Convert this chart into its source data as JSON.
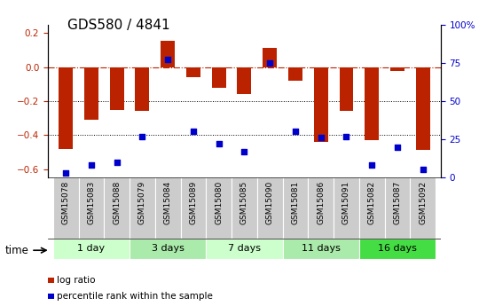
{
  "title": "GDS580 / 4841",
  "samples": [
    "GSM15078",
    "GSM15083",
    "GSM15088",
    "GSM15079",
    "GSM15084",
    "GSM15089",
    "GSM15080",
    "GSM15085",
    "GSM15090",
    "GSM15081",
    "GSM15086",
    "GSM15091",
    "GSM15082",
    "GSM15087",
    "GSM15092"
  ],
  "log_ratio": [
    -0.48,
    -0.31,
    -0.255,
    -0.26,
    0.155,
    -0.06,
    -0.125,
    -0.16,
    0.11,
    -0.08,
    -0.44,
    -0.26,
    -0.43,
    -0.025,
    -0.49
  ],
  "percentile": [
    3,
    8,
    10,
    27,
    77,
    30,
    22,
    17,
    75,
    30,
    26,
    27,
    8,
    20,
    5
  ],
  "groups": [
    {
      "label": "1 day",
      "count": 3,
      "color": "#ccffcc"
    },
    {
      "label": "3 days",
      "count": 3,
      "color": "#aaeaaa"
    },
    {
      "label": "7 days",
      "count": 3,
      "color": "#ccffcc"
    },
    {
      "label": "11 days",
      "count": 3,
      "color": "#aaeaaa"
    },
    {
      "label": "16 days",
      "count": 3,
      "color": "#44dd44"
    }
  ],
  "bar_color": "#bb2200",
  "dot_color": "#0000cc",
  "ylim_left": [
    -0.65,
    0.25
  ],
  "ylim_right": [
    0,
    100
  ],
  "yticks_left": [
    -0.6,
    -0.4,
    -0.2,
    0.0,
    0.2
  ],
  "yticks_right": [
    0,
    25,
    50,
    75,
    100
  ],
  "hline_y": 0,
  "dotted_lines": [
    -0.2,
    -0.4
  ],
  "legend_labels": [
    "log ratio",
    "percentile rank within the sample"
  ],
  "legend_colors": [
    "#bb2200",
    "#0000cc"
  ],
  "bar_width": 0.55,
  "sample_fontsize": 6.5,
  "group_label_fontsize": 8,
  "title_fontsize": 11,
  "time_label": "time"
}
